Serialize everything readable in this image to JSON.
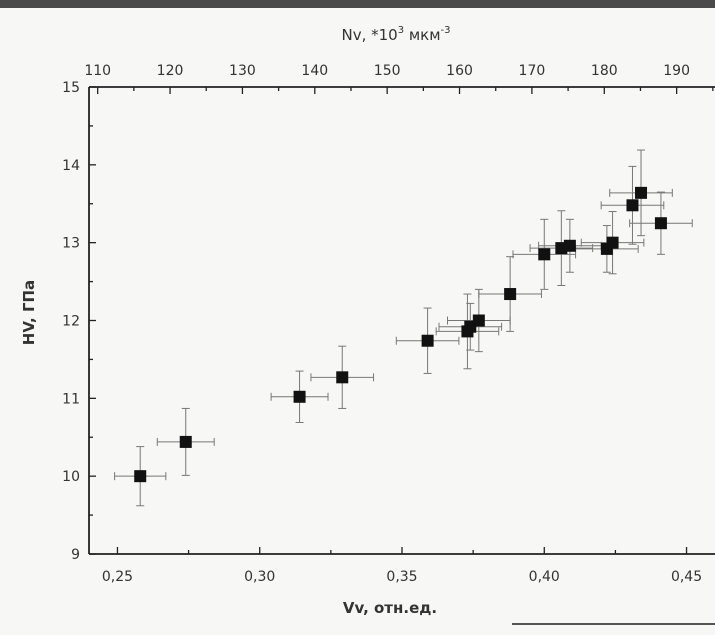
{
  "chart_data": {
    "type": "scatter",
    "xlabel": "Vv, отн.ед.",
    "x2label_prefix": "Nv, *10",
    "x2label_exp": "3",
    "x2label_unit": " мкм",
    "x2label_unit_exp": "-3",
    "ylabel": "HV, ГПа",
    "xlim": [
      0.24,
      0.46
    ],
    "ylim": [
      9,
      15
    ],
    "x2lim": [
      108.8,
      195.3
    ],
    "xticks": [
      0.25,
      0.3,
      0.35,
      0.4,
      0.45
    ],
    "xtick_labels": [
      "0,25",
      "0,30",
      "0,35",
      "0,40",
      "0,45"
    ],
    "yticks": [
      9,
      10,
      11,
      12,
      13,
      14,
      15
    ],
    "ytick_labels": [
      "9",
      "10",
      "11",
      "12",
      "13",
      "14",
      "15"
    ],
    "x2ticks": [
      110,
      120,
      130,
      140,
      150,
      160,
      170,
      180,
      190
    ],
    "x2tick_labels": [
      "110",
      "120",
      "130",
      "140",
      "150",
      "160",
      "170",
      "180",
      "190"
    ],
    "points": [
      {
        "x": 0.258,
        "y": 10.0,
        "xerr": 0.009,
        "yerr": 0.38
      },
      {
        "x": 0.274,
        "y": 10.44,
        "xerr": 0.01,
        "yerr": 0.43
      },
      {
        "x": 0.314,
        "y": 11.02,
        "xerr": 0.01,
        "yerr": 0.33
      },
      {
        "x": 0.329,
        "y": 11.27,
        "xerr": 0.011,
        "yerr": 0.4
      },
      {
        "x": 0.359,
        "y": 11.74,
        "xerr": 0.011,
        "yerr": 0.42
      },
      {
        "x": 0.373,
        "y": 11.86,
        "xerr": 0.011,
        "yerr": 0.48
      },
      {
        "x": 0.374,
        "y": 11.92,
        "xerr": 0.011,
        "yerr": 0.3
      },
      {
        "x": 0.377,
        "y": 12.0,
        "xerr": 0.011,
        "yerr": 0.4
      },
      {
        "x": 0.388,
        "y": 12.34,
        "xerr": 0.011,
        "yerr": 0.48
      },
      {
        "x": 0.4,
        "y": 12.85,
        "xerr": 0.011,
        "yerr": 0.45
      },
      {
        "x": 0.406,
        "y": 12.93,
        "xerr": 0.011,
        "yerr": 0.48
      },
      {
        "x": 0.409,
        "y": 12.96,
        "xerr": 0.011,
        "yerr": 0.34
      },
      {
        "x": 0.422,
        "y": 12.92,
        "xerr": 0.011,
        "yerr": 0.3
      },
      {
        "x": 0.424,
        "y": 13.0,
        "xerr": 0.011,
        "yerr": 0.4
      },
      {
        "x": 0.431,
        "y": 13.48,
        "xerr": 0.011,
        "yerr": 0.5
      },
      {
        "x": 0.434,
        "y": 13.64,
        "xerr": 0.011,
        "yerr": 0.55
      },
      {
        "x": 0.441,
        "y": 13.25,
        "xerr": 0.011,
        "yerr": 0.4
      }
    ],
    "marker_color": "#111111",
    "errorbar_color": "#777777",
    "grid": false
  }
}
